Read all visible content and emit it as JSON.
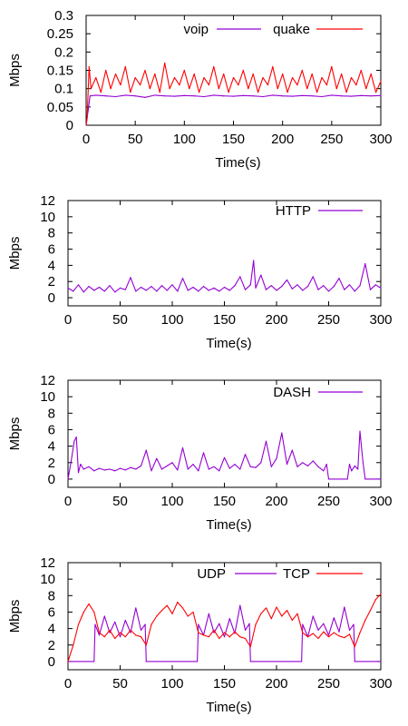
{
  "chart_data": [
    {
      "type": "line",
      "xlabel": "Time(s)",
      "ylabel": "Mbps",
      "xlim": [
        0,
        300
      ],
      "ylim": [
        0,
        0.3
      ],
      "xticks": [
        "0",
        "50",
        "100",
        "150",
        "200",
        "250",
        "300"
      ],
      "yticks": [
        "0",
        "0.05",
        "0.1",
        "0.15",
        "0.2",
        "0.25",
        "0.3"
      ],
      "grid": false,
      "legend": "top-right",
      "series": [
        {
          "name": "voip",
          "color": "#9400d3",
          "x": [
            0,
            2,
            4,
            10,
            20,
            30,
            40,
            50,
            60,
            70,
            80,
            90,
            100,
            110,
            120,
            130,
            140,
            150,
            160,
            170,
            180,
            190,
            200,
            210,
            220,
            230,
            240,
            250,
            260,
            270,
            280,
            290,
            300
          ],
          "y": [
            0,
            0.04,
            0.08,
            0.082,
            0.08,
            0.078,
            0.082,
            0.08,
            0.076,
            0.082,
            0.08,
            0.079,
            0.081,
            0.08,
            0.078,
            0.082,
            0.08,
            0.079,
            0.081,
            0.08,
            0.078,
            0.082,
            0.08,
            0.079,
            0.081,
            0.08,
            0.078,
            0.082,
            0.08,
            0.079,
            0.081,
            0.08,
            0.081
          ]
        },
        {
          "name": "quake",
          "color": "#ff0000",
          "x": [
            0,
            1,
            3,
            5,
            10,
            15,
            20,
            25,
            30,
            35,
            40,
            45,
            50,
            55,
            60,
            65,
            70,
            75,
            80,
            85,
            90,
            95,
            100,
            105,
            110,
            115,
            120,
            125,
            130,
            135,
            140,
            145,
            150,
            155,
            160,
            165,
            170,
            175,
            180,
            185,
            190,
            195,
            200,
            205,
            210,
            215,
            220,
            225,
            230,
            235,
            240,
            245,
            250,
            255,
            260,
            265,
            270,
            275,
            280,
            285,
            290,
            295,
            300
          ],
          "y": [
            0,
            0.02,
            0.16,
            0.1,
            0.13,
            0.09,
            0.15,
            0.1,
            0.14,
            0.11,
            0.16,
            0.09,
            0.13,
            0.11,
            0.15,
            0.1,
            0.14,
            0.09,
            0.17,
            0.1,
            0.13,
            0.11,
            0.15,
            0.1,
            0.14,
            0.09,
            0.13,
            0.11,
            0.16,
            0.1,
            0.14,
            0.09,
            0.13,
            0.11,
            0.15,
            0.1,
            0.14,
            0.09,
            0.13,
            0.11,
            0.16,
            0.1,
            0.14,
            0.09,
            0.13,
            0.11,
            0.15,
            0.1,
            0.14,
            0.09,
            0.13,
            0.11,
            0.16,
            0.1,
            0.14,
            0.09,
            0.13,
            0.11,
            0.15,
            0.1,
            0.14,
            0.09,
            0.12
          ]
        }
      ]
    },
    {
      "type": "line",
      "xlabel": "Time(s)",
      "ylabel": "Mbps",
      "xlim": [
        0,
        300
      ],
      "ylim": [
        -1,
        12
      ],
      "xticks": [
        "0",
        "50",
        "100",
        "150",
        "200",
        "250",
        "300"
      ],
      "yticks": [
        "0",
        "2",
        "4",
        "6",
        "8",
        "10",
        "12"
      ],
      "grid": false,
      "legend": "top-right",
      "series": [
        {
          "name": "HTTP",
          "color": "#9400d3",
          "x": [
            0,
            5,
            10,
            15,
            20,
            25,
            30,
            35,
            40,
            45,
            50,
            55,
            60,
            65,
            70,
            75,
            80,
            85,
            90,
            95,
            100,
            105,
            110,
            115,
            120,
            125,
            130,
            135,
            140,
            145,
            150,
            155,
            160,
            165,
            170,
            175,
            178,
            180,
            185,
            190,
            195,
            200,
            205,
            210,
            215,
            220,
            225,
            230,
            235,
            240,
            245,
            250,
            255,
            260,
            265,
            270,
            275,
            280,
            285,
            290,
            295,
            300
          ],
          "y": [
            1.2,
            0.8,
            1.6,
            0.7,
            1.4,
            0.9,
            1.3,
            0.8,
            1.5,
            0.7,
            1.2,
            1.0,
            2.5,
            0.8,
            1.3,
            0.9,
            1.4,
            0.8,
            1.5,
            0.9,
            1.6,
            0.8,
            2.4,
            0.9,
            1.3,
            0.8,
            1.4,
            0.9,
            1.2,
            0.8,
            1.3,
            0.9,
            1.5,
            2.6,
            1.0,
            1.6,
            4.6,
            1.2,
            2.8,
            1.0,
            1.5,
            0.9,
            1.4,
            2.2,
            1.1,
            1.6,
            0.9,
            1.4,
            2.6,
            1.0,
            1.5,
            0.8,
            1.4,
            2.4,
            1.0,
            1.6,
            0.8,
            1.5,
            4.2,
            1.0,
            1.6,
            1.2
          ]
        }
      ]
    },
    {
      "type": "line",
      "xlabel": "Time(s)",
      "ylabel": "Mbps",
      "xlim": [
        0,
        300
      ],
      "ylim": [
        -1,
        12
      ],
      "xticks": [
        "0",
        "50",
        "100",
        "150",
        "200",
        "250",
        "300"
      ],
      "yticks": [
        "0",
        "2",
        "4",
        "6",
        "8",
        "10",
        "12"
      ],
      "grid": false,
      "legend": "top-right",
      "series": [
        {
          "name": "DASH",
          "color": "#9400d3",
          "x": [
            0,
            3,
            6,
            8,
            10,
            12,
            15,
            20,
            25,
            30,
            35,
            40,
            45,
            50,
            55,
            60,
            65,
            70,
            75,
            80,
            85,
            90,
            95,
            100,
            105,
            110,
            115,
            120,
            125,
            130,
            135,
            140,
            145,
            150,
            155,
            160,
            165,
            170,
            175,
            180,
            185,
            190,
            195,
            200,
            205,
            210,
            215,
            220,
            225,
            230,
            235,
            240,
            245,
            248,
            250,
            255,
            260,
            265,
            268,
            270,
            272,
            275,
            278,
            280,
            283,
            285,
            290,
            295,
            300
          ],
          "y": [
            0,
            2.2,
            4.6,
            5.1,
            0.8,
            1.8,
            1.2,
            1.5,
            1.0,
            1.3,
            1.1,
            1.2,
            1.0,
            1.3,
            1.1,
            1.4,
            1.2,
            1.6,
            3.5,
            1.0,
            2.5,
            1.2,
            1.6,
            2.0,
            1.1,
            3.8,
            1.2,
            1.8,
            1.0,
            3.2,
            1.2,
            1.5,
            1.0,
            2.6,
            1.3,
            1.8,
            1.2,
            3.0,
            1.5,
            1.4,
            2.0,
            4.6,
            1.5,
            2.5,
            5.6,
            1.8,
            3.5,
            1.5,
            2.0,
            1.6,
            2.2,
            1.5,
            1.0,
            1.8,
            0,
            0,
            0,
            0,
            0,
            1.8,
            1.0,
            1.6,
            1.2,
            5.8,
            2.0,
            0,
            0,
            0,
            0
          ]
        }
      ]
    },
    {
      "type": "line",
      "xlabel": "Time(s)",
      "ylabel": "Mbps",
      "xlim": [
        0,
        300
      ],
      "ylim": [
        -1,
        12
      ],
      "xticks": [
        "0",
        "50",
        "100",
        "150",
        "200",
        "250",
        "300"
      ],
      "yticks": [
        "0",
        "2",
        "4",
        "6",
        "8",
        "10",
        "12"
      ],
      "grid": false,
      "legend": "top-right",
      "series": [
        {
          "name": "UDP",
          "color": "#9400d3",
          "x": [
            0,
            25,
            26,
            30,
            35,
            40,
            45,
            50,
            55,
            60,
            65,
            70,
            74,
            75,
            124,
            125,
            130,
            135,
            140,
            145,
            150,
            155,
            160,
            165,
            170,
            174,
            175,
            224,
            225,
            230,
            235,
            240,
            245,
            250,
            255,
            260,
            265,
            270,
            274,
            275,
            300
          ],
          "y": [
            0,
            0,
            4.5,
            3.2,
            5.5,
            3.5,
            4.8,
            3.0,
            5.0,
            3.5,
            6.5,
            3.8,
            4.5,
            0,
            0,
            4.5,
            3.2,
            5.8,
            3.5,
            4.6,
            3.0,
            5.2,
            3.4,
            6.8,
            3.8,
            4.6,
            0,
            0,
            4.5,
            3.0,
            5.5,
            3.8,
            4.6,
            3.2,
            5.3,
            3.6,
            6.6,
            3.8,
            4.5,
            0,
            0
          ]
        },
        {
          "name": "TCP",
          "color": "#ff0000",
          "x": [
            0,
            5,
            10,
            15,
            20,
            25,
            30,
            35,
            40,
            45,
            50,
            55,
            60,
            65,
            70,
            75,
            80,
            85,
            90,
            95,
            100,
            105,
            110,
            115,
            120,
            125,
            130,
            135,
            140,
            145,
            150,
            155,
            160,
            165,
            170,
            175,
            180,
            185,
            190,
            195,
            200,
            205,
            210,
            215,
            220,
            225,
            230,
            235,
            240,
            245,
            250,
            255,
            260,
            265,
            270,
            275,
            280,
            285,
            290,
            295,
            300
          ],
          "y": [
            0,
            2.0,
            4.5,
            6.0,
            7.0,
            6.0,
            3.5,
            3.0,
            3.8,
            2.8,
            3.5,
            3.0,
            3.8,
            3.2,
            3.0,
            2.0,
            4.5,
            5.5,
            6.2,
            6.8,
            5.8,
            7.2,
            6.5,
            5.5,
            6.0,
            3.5,
            3.2,
            3.0,
            3.8,
            2.8,
            3.5,
            3.0,
            3.6,
            3.0,
            2.8,
            1.8,
            4.5,
            5.8,
            6.5,
            5.2,
            6.6,
            5.5,
            6.2,
            5.0,
            5.8,
            3.5,
            3.0,
            3.4,
            2.8,
            3.6,
            3.0,
            3.5,
            3.1,
            2.9,
            3.3,
            1.8,
            3.5,
            5.0,
            6.2,
            7.5,
            8.2
          ]
        }
      ]
    }
  ]
}
